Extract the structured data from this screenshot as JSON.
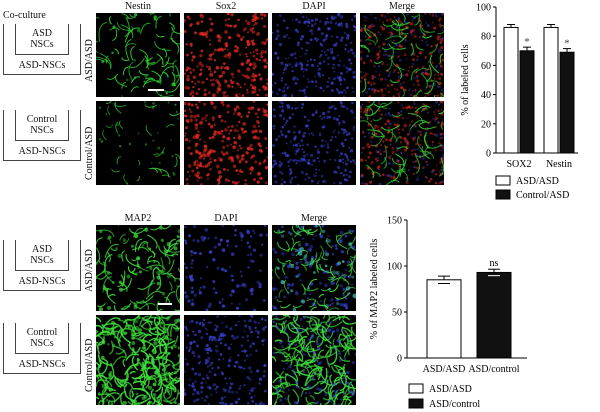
{
  "top": {
    "coculture_label": "Co-culture",
    "column_headers": [
      "Nestin",
      "Sox2",
      "DAPI",
      "Merge"
    ],
    "rows": [
      {
        "label": "ASD/ASD",
        "upper": "ASD",
        "upper2": "NSCs",
        "lower": "ASD-NSCs"
      },
      {
        "label": "Control/ASD",
        "upper": "Control",
        "upper2": "NSCs",
        "lower": "ASD-NSCs"
      }
    ]
  },
  "bottom": {
    "column_headers": [
      "MAP2",
      "DAPI",
      "Merge"
    ],
    "rows": [
      {
        "label": "ASD/ASD",
        "upper": "ASD",
        "upper2": "NSCs",
        "lower": "ASD-NSCs"
      },
      {
        "label": "Control/ASD",
        "upper": "Control",
        "upper2": "NSCs",
        "lower": "ASD-NSCs"
      }
    ]
  },
  "colors": {
    "nestin": "#2ed12e",
    "sox2": "#e0281e",
    "dapi": "#3a44d8",
    "map2": "#3ee03a"
  },
  "chart_data": [
    {
      "type": "bar",
      "categories": [
        "SOX2",
        "Nestin"
      ],
      "series": [
        {
          "name": "ASD/ASD",
          "values": [
            86,
            86
          ],
          "errors": [
            2,
            2
          ],
          "color": "#ffffff"
        },
        {
          "name": "Control/ASD",
          "values": [
            70,
            69
          ],
          "errors": [
            2.5,
            2.5
          ],
          "color": "#111111"
        }
      ],
      "significance": [
        "*",
        "*"
      ],
      "ylabel": "% of labeled cells",
      "ylim": [
        0,
        100
      ],
      "yticks": [
        0,
        20,
        40,
        60,
        80,
        100
      ],
      "legend": [
        "ASD/ASD",
        "Control/ASD"
      ],
      "legend_position": "bottom"
    },
    {
      "type": "bar",
      "categories": [
        "ASD/ASD",
        "ASD/control"
      ],
      "values": [
        85,
        93
      ],
      "errors": [
        4,
        3.5
      ],
      "colors": [
        "#ffffff",
        "#111111"
      ],
      "significance": [
        "",
        "ns"
      ],
      "ylabel": "% of MAP2 labeled cells",
      "ylim": [
        0,
        150
      ],
      "yticks": [
        0,
        50,
        100,
        150
      ],
      "legend": [
        "ASD/ASD",
        "ASD/control"
      ],
      "legend_position": "bottom"
    }
  ]
}
